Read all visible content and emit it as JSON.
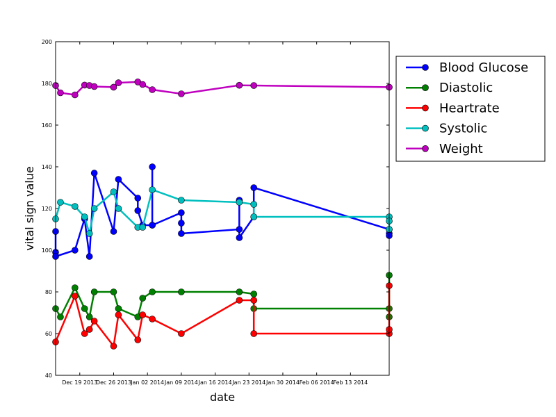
{
  "chart_data": {
    "type": "line",
    "title": "",
    "xlabel": "date",
    "ylabel": "vital sign value",
    "ylim": [
      40,
      200
    ],
    "xlim": [
      "2013-12-14",
      "2014-02-21"
    ],
    "y_ticks": [
      "40",
      "60",
      "80",
      "100",
      "120",
      "140",
      "160",
      "180",
      "200"
    ],
    "x_ticks": [
      {
        "date": "2013-12-19",
        "label": "Dec 19 2013"
      },
      {
        "date": "2013-12-26",
        "label": "Dec 26 2013"
      },
      {
        "date": "2014-01-02",
        "label": "Jan 02 2014"
      },
      {
        "date": "2014-01-09",
        "label": "Jan 09 2014"
      },
      {
        "date": "2014-01-16",
        "label": "Jan 16 2014"
      },
      {
        "date": "2014-01-23",
        "label": "Jan 23 2014"
      },
      {
        "date": "2014-01-30",
        "label": "Jan 30 2014"
      },
      {
        "date": "2014-02-06",
        "label": "Feb 06 2014"
      },
      {
        "date": "2014-02-13",
        "label": "Feb 13 2014"
      }
    ],
    "grid": false,
    "legend_position": "outside-right",
    "series": [
      {
        "name": "Blood Glucose",
        "color": "#0000ff",
        "points": [
          [
            "2013-12-14",
            109
          ],
          [
            "2013-12-14",
            99
          ],
          [
            "2013-12-14",
            97
          ],
          [
            "2013-12-18",
            100
          ],
          [
            "2013-12-20",
            115
          ],
          [
            "2013-12-21",
            97
          ],
          [
            "2013-12-22",
            137
          ],
          [
            "2013-12-26",
            109
          ],
          [
            "2013-12-27",
            134
          ],
          [
            "2013-12-31",
            125
          ],
          [
            "2013-12-31",
            119
          ],
          [
            "2014-01-01",
            112
          ],
          [
            "2014-01-03",
            112
          ],
          [
            "2014-01-03",
            140
          ],
          [
            "2014-01-03",
            112
          ],
          [
            "2014-01-09",
            118
          ],
          [
            "2014-01-09",
            113
          ],
          [
            "2014-01-09",
            108
          ],
          [
            "2014-01-21",
            110
          ],
          [
            "2014-01-21",
            124
          ],
          [
            "2014-01-21",
            106
          ],
          [
            "2014-01-24",
            116
          ],
          [
            "2014-01-24",
            130
          ],
          [
            "2014-02-21",
            110
          ],
          [
            "2014-02-21",
            108
          ],
          [
            "2014-02-21",
            107
          ]
        ]
      },
      {
        "name": "Diastolic",
        "color": "#008000",
        "points": [
          [
            "2013-12-14",
            72
          ],
          [
            "2013-12-15",
            68
          ],
          [
            "2013-12-18",
            82
          ],
          [
            "2013-12-20",
            72
          ],
          [
            "2013-12-21",
            68
          ],
          [
            "2013-12-22",
            80
          ],
          [
            "2013-12-26",
            80
          ],
          [
            "2013-12-27",
            72
          ],
          [
            "2013-12-31",
            68
          ],
          [
            "2014-01-01",
            77
          ],
          [
            "2014-01-03",
            80
          ],
          [
            "2014-01-09",
            80
          ],
          [
            "2014-01-21",
            80
          ],
          [
            "2014-01-24",
            79
          ],
          [
            "2014-01-24",
            72
          ],
          [
            "2014-02-21",
            72
          ],
          [
            "2014-02-21",
            68
          ],
          [
            "2014-02-21",
            88
          ]
        ]
      },
      {
        "name": "Heartrate",
        "color": "#ff0000",
        "points": [
          [
            "2013-12-14",
            56
          ],
          [
            "2013-12-18",
            78
          ],
          [
            "2013-12-20",
            60
          ],
          [
            "2013-12-21",
            62
          ],
          [
            "2013-12-22",
            66
          ],
          [
            "2013-12-26",
            54
          ],
          [
            "2013-12-27",
            69
          ],
          [
            "2013-12-31",
            57
          ],
          [
            "2014-01-01",
            69
          ],
          [
            "2014-01-03",
            67
          ],
          [
            "2014-01-09",
            60
          ],
          [
            "2014-01-21",
            76
          ],
          [
            "2014-01-24",
            76
          ],
          [
            "2014-01-24",
            60
          ],
          [
            "2014-02-21",
            60
          ],
          [
            "2014-02-21",
            62
          ],
          [
            "2014-02-21",
            83
          ]
        ]
      },
      {
        "name": "Systolic",
        "color": "#00bfbf",
        "points": [
          [
            "2013-12-14",
            115
          ],
          [
            "2013-12-15",
            123
          ],
          [
            "2013-12-18",
            121
          ],
          [
            "2013-12-20",
            116
          ],
          [
            "2013-12-21",
            108
          ],
          [
            "2013-12-22",
            120
          ],
          [
            "2013-12-26",
            128
          ],
          [
            "2013-12-27",
            120
          ],
          [
            "2013-12-31",
            111
          ],
          [
            "2014-01-01",
            111
          ],
          [
            "2014-01-03",
            129
          ],
          [
            "2014-01-09",
            124
          ],
          [
            "2014-01-21",
            123
          ],
          [
            "2014-01-24",
            122
          ],
          [
            "2014-01-24",
            116
          ],
          [
            "2014-02-21",
            116
          ],
          [
            "2014-02-21",
            114
          ],
          [
            "2014-02-21",
            110
          ]
        ]
      },
      {
        "name": "Weight",
        "color": "#bf00bf",
        "points": [
          [
            "2013-12-14",
            179
          ],
          [
            "2013-12-15",
            175.5
          ],
          [
            "2013-12-18",
            174.5
          ],
          [
            "2013-12-20",
            179.2
          ],
          [
            "2013-12-21",
            179
          ],
          [
            "2013-12-22",
            178.5
          ],
          [
            "2013-12-26",
            178.2
          ],
          [
            "2013-12-27",
            180.3
          ],
          [
            "2013-12-31",
            180.7
          ],
          [
            "2014-01-01",
            179.5
          ],
          [
            "2014-01-03",
            177
          ],
          [
            "2014-01-09",
            175
          ],
          [
            "2014-01-21",
            179.1
          ],
          [
            "2014-01-24",
            179
          ],
          [
            "2014-02-21",
            178.2
          ]
        ]
      }
    ]
  }
}
